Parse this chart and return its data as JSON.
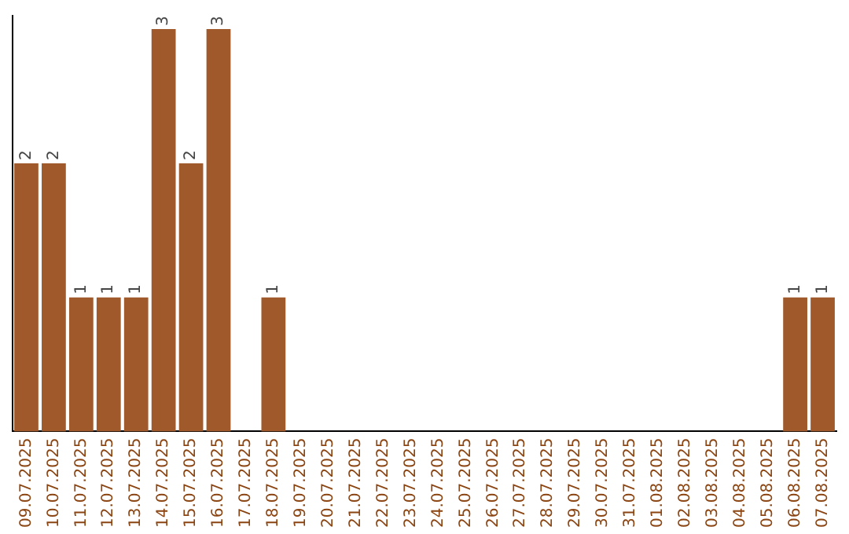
{
  "chart_data": {
    "type": "bar",
    "categories": [
      "09.07.2025",
      "10.07.2025",
      "11.07.2025",
      "12.07.2025",
      "13.07.2025",
      "14.07.2025",
      "15.07.2025",
      "16.07.2025",
      "17.07.2025",
      "18.07.2025",
      "19.07.2025",
      "20.07.2025",
      "21.07.2025",
      "22.07.2025",
      "23.07.2025",
      "24.07.2025",
      "25.07.2025",
      "26.07.2025",
      "27.07.2025",
      "28.07.2025",
      "29.07.2025",
      "30.07.2025",
      "31.07.2025",
      "01.08.2025",
      "02.08.2025",
      "03.08.2025",
      "04.08.2025",
      "05.08.2025",
      "06.08.2025",
      "07.08.2025"
    ],
    "values": [
      2,
      2,
      1,
      1,
      1,
      3,
      2,
      3,
      0,
      1,
      0,
      0,
      0,
      0,
      0,
      0,
      0,
      0,
      0,
      0,
      0,
      0,
      0,
      0,
      0,
      0,
      0,
      0,
      1,
      1
    ],
    "value_labels": [
      "2",
      "2",
      "1",
      "1",
      "1",
      "3",
      "2",
      "3",
      null,
      "1",
      null,
      null,
      null,
      null,
      null,
      null,
      null,
      null,
      null,
      null,
      null,
      null,
      null,
      null,
      null,
      null,
      null,
      null,
      "1",
      "1"
    ],
    "color": "#a0592a",
    "ylim": [
      0,
      3.1
    ],
    "tick_labels": "x",
    "grid": false,
    "legend": false
  }
}
